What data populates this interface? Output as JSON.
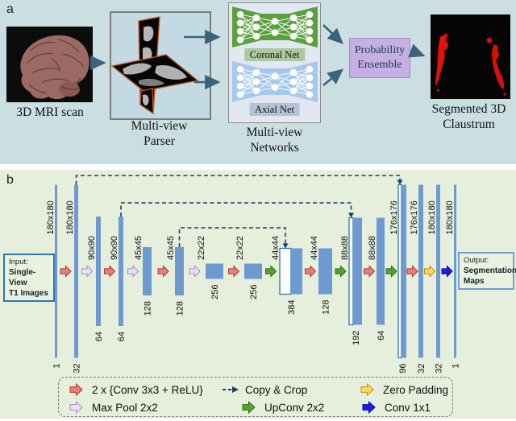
{
  "panel_a": {
    "label": "a",
    "mri_caption": "3D MRI scan",
    "parser_caption": "Multi-view\nParser",
    "networks_caption": "Multi-view\nNetworks",
    "coronal_label": "Coronal Net",
    "axial_label": "Axial Net",
    "ensemble_label": "Probability\nEnsemble",
    "output_caption": "Segmented 3D\nClaustrum"
  },
  "panel_b": {
    "label": "b",
    "input_box": {
      "line1": "Input:",
      "line2": "Single-View",
      "line3": "T1 Images"
    },
    "output_box": {
      "line1": "Output:",
      "line2": "Segmentation",
      "line3": "Maps"
    },
    "bars": [
      {
        "size": "180x180",
        "channels": "1",
        "kind": "plain"
      },
      {
        "size": "180x180",
        "channels": "32",
        "kind": "plain"
      },
      {
        "size": "90x90",
        "channels": "64",
        "kind": "plain"
      },
      {
        "size": "90x90",
        "channels": "64",
        "kind": "plain"
      },
      {
        "size": "45x45",
        "channels": "128",
        "kind": "plain"
      },
      {
        "size": "45x45",
        "channels": "128",
        "kind": "plain"
      },
      {
        "size": "22x22",
        "channels": "256",
        "kind": "plain"
      },
      {
        "size": "22x22",
        "channels": "256",
        "kind": "plain"
      },
      {
        "size": "44x44",
        "channels": "384",
        "kind": "concat"
      },
      {
        "size": "44x44",
        "channels": "128",
        "kind": "plain"
      },
      {
        "size": "88x88",
        "channels": "192",
        "kind": "concat"
      },
      {
        "size": "88x88",
        "channels": "64",
        "kind": "plain"
      },
      {
        "size": "176x176",
        "channels": "96",
        "kind": "concat"
      },
      {
        "size": "176x176",
        "channels": "32",
        "kind": "plain"
      },
      {
        "size": "180x180",
        "channels": "32",
        "kind": "plain"
      },
      {
        "size": "180x180",
        "channels": "1",
        "kind": "plain"
      }
    ],
    "flow_arrows": [
      "conv",
      "pool",
      "conv",
      "pool",
      "conv",
      "pool",
      "conv",
      "upconv",
      "conv",
      "upconv",
      "conv",
      "upconv",
      "conv",
      "zeropad",
      "conv1x1"
    ],
    "skip_connections": [
      {
        "from": 1,
        "to": 12
      },
      {
        "from": 3,
        "to": 10
      },
      {
        "from": 5,
        "to": 8
      }
    ],
    "legend": [
      {
        "type": "conv",
        "label": "2 x {Conv 3x3 + ReLU}"
      },
      {
        "type": "copy",
        "label": "Copy & Crop"
      },
      {
        "type": "zeropad",
        "label": "Zero Padding"
      },
      {
        "type": "pool",
        "label": "Max Pool 2x2"
      },
      {
        "type": "upconv",
        "label": "UpConv 2x2"
      },
      {
        "type": "conv1x1",
        "label": "Conv 1x1"
      }
    ],
    "colors": {
      "bar": "#6e9ad2",
      "concat_white": "#fbfdf6",
      "skip": "#1c3e66",
      "conv_fill": "#e97e72",
      "pool_fill": "#ecdff7",
      "upconv_fill": "#55a233",
      "zeropad_fill": "#ffd966",
      "conv1x1_fill": "#1b1bf0"
    }
  }
}
